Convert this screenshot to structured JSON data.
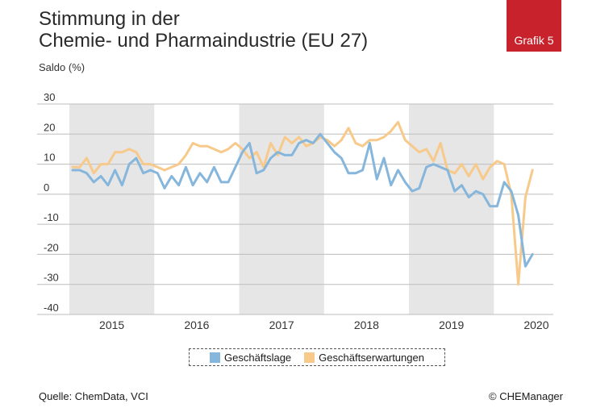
{
  "header": {
    "title_line1": "Stimmung in der",
    "title_line2": "Chemie- und Pharmaindustrie (EU 27)",
    "subtitle": "Saldo (%)",
    "badge": "Grafik 5"
  },
  "footer": {
    "source": "Quelle: ChemData, VCI",
    "copyright": "© CHEManager"
  },
  "colors": {
    "geschaeftslage": "#86b6db",
    "geschaeftserwartungen": "#f7c98a",
    "band": "#e6e6e6"
  },
  "chart_data": {
    "type": "line",
    "ylim": [
      -40,
      30
    ],
    "yticks": [
      "30",
      "20",
      "10",
      "0",
      "-10",
      "-20",
      "-30",
      "-40"
    ],
    "grid": true,
    "year_labels": [
      "2015",
      "2016",
      "2017",
      "2018",
      "2019",
      "2020"
    ],
    "legend": "bottom-center",
    "series": [
      {
        "name": "Geschäftslage",
        "values": [
          8,
          8,
          7,
          4,
          6,
          3,
          8,
          3,
          10,
          12,
          7,
          8,
          7,
          2,
          6,
          3,
          9,
          3,
          7,
          4,
          9,
          4,
          4,
          9,
          14,
          17,
          7,
          8,
          12,
          14,
          13,
          13,
          17,
          18,
          17,
          20,
          17,
          14,
          12,
          7,
          7,
          8,
          17,
          5,
          12,
          3,
          8,
          4,
          1,
          2,
          9,
          10,
          9,
          8,
          1,
          3,
          -1,
          1,
          0,
          -4,
          -4,
          4,
          1,
          -7,
          -24,
          -20
        ]
      },
      {
        "name": "Geschäftserwartungen",
        "values": [
          9,
          9,
          12,
          7,
          10,
          10,
          14,
          14,
          15,
          14,
          10,
          10,
          9,
          8,
          9,
          10,
          13,
          17,
          16,
          16,
          15,
          14,
          15,
          17,
          15,
          12,
          14,
          9,
          17,
          13,
          19,
          17,
          19,
          16,
          17,
          19,
          18,
          16,
          18,
          22,
          17,
          16,
          18,
          18,
          19,
          21,
          24,
          18,
          16,
          14,
          15,
          11,
          17,
          8,
          7,
          10,
          6,
          10,
          5,
          9,
          11,
          10,
          0,
          -30,
          -1,
          8
        ]
      }
    ]
  }
}
